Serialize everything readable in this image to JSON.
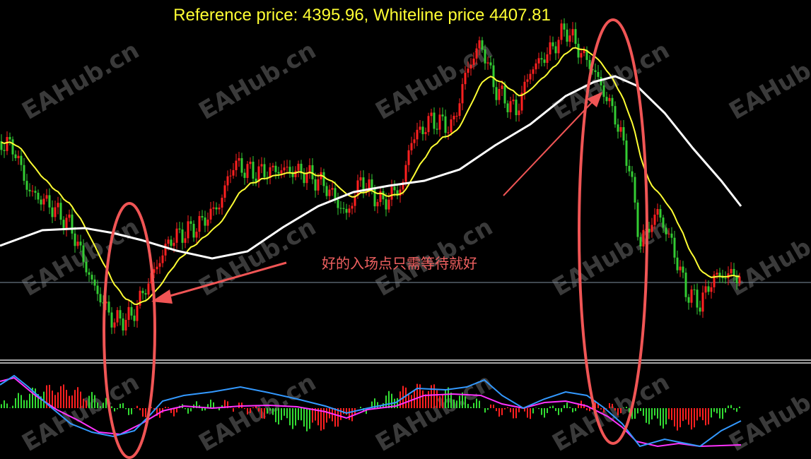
{
  "header": {
    "title": "Reference price: 4395.96, Whiteline price 4407.81"
  },
  "annotation": {
    "text": "好的入场点只需等待就好"
  },
  "watermark": {
    "text": "EAHub.cn"
  }
}
